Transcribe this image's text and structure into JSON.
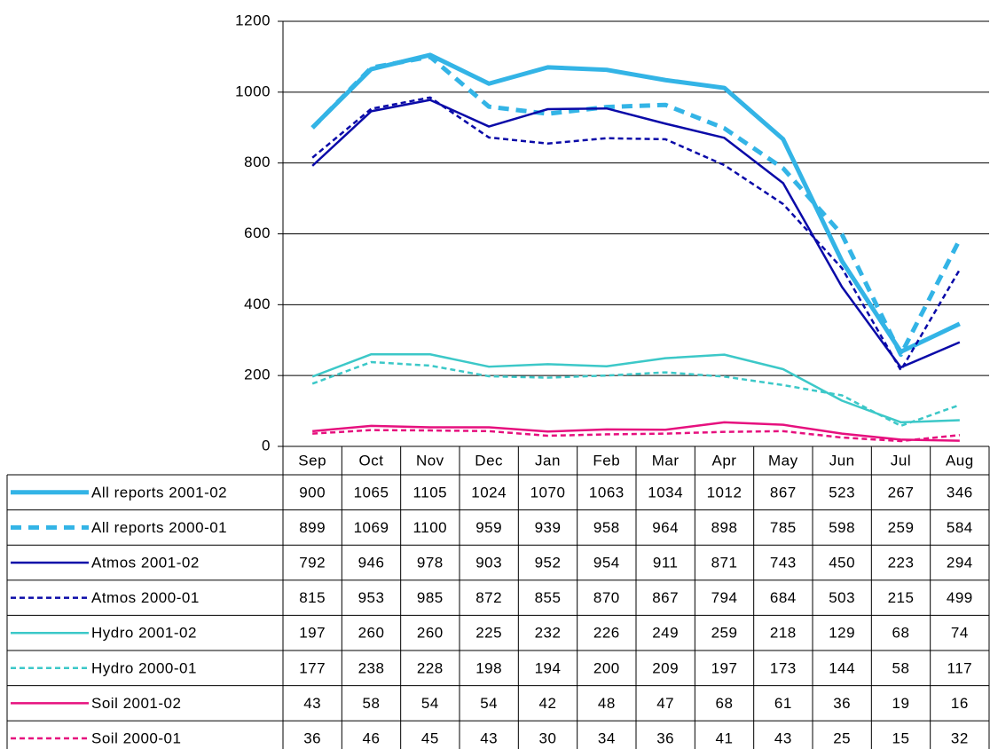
{
  "chart_data": {
    "type": "line",
    "categories": [
      "Sep",
      "Oct",
      "Nov",
      "Dec",
      "Jan",
      "Feb",
      "Mar",
      "Apr",
      "May",
      "Jun",
      "Jul",
      "Aug"
    ],
    "ylim": [
      0,
      1200
    ],
    "yticks": [
      0,
      200,
      400,
      600,
      800,
      1000,
      1200
    ],
    "grid": true,
    "data_table": true,
    "series": [
      {
        "name": "All reports 2001-02",
        "color": "#33b4e6",
        "dashed": false,
        "width": 5,
        "values": [
          900,
          1065,
          1105,
          1024,
          1070,
          1063,
          1034,
          1012,
          867,
          523,
          267,
          346
        ]
      },
      {
        "name": "All reports 2000-01",
        "color": "#33b4e6",
        "dashed": true,
        "width": 5,
        "values": [
          899,
          1069,
          1100,
          959,
          939,
          958,
          964,
          898,
          785,
          598,
          259,
          584
        ]
      },
      {
        "name": "Atmos 2001-02",
        "color": "#0a0aa8",
        "dashed": false,
        "width": 2.5,
        "values": [
          792,
          946,
          978,
          903,
          952,
          954,
          911,
          871,
          743,
          450,
          223,
          294
        ]
      },
      {
        "name": "Atmos 2000-01",
        "color": "#0a0aa8",
        "dashed": true,
        "width": 2.5,
        "values": [
          815,
          953,
          985,
          872,
          855,
          870,
          867,
          794,
          684,
          503,
          215,
          499
        ]
      },
      {
        "name": "Hydro 2001-02",
        "color": "#3cc8c8",
        "dashed": false,
        "width": 2.5,
        "values": [
          197,
          260,
          260,
          225,
          232,
          226,
          249,
          259,
          218,
          129,
          68,
          74
        ]
      },
      {
        "name": "Hydro 2000-01",
        "color": "#3cc8c8",
        "dashed": true,
        "width": 2.5,
        "values": [
          177,
          238,
          228,
          198,
          194,
          200,
          209,
          197,
          173,
          144,
          58,
          117
        ]
      },
      {
        "name": "Soil 2001-02",
        "color": "#e6107e",
        "dashed": false,
        "width": 2.5,
        "values": [
          43,
          58,
          54,
          54,
          42,
          48,
          47,
          68,
          61,
          36,
          19,
          16
        ]
      },
      {
        "name": "Soil 2000-01",
        "color": "#e6107e",
        "dashed": true,
        "width": 2.5,
        "values": [
          36,
          46,
          45,
          43,
          30,
          34,
          36,
          41,
          43,
          25,
          15,
          32
        ]
      }
    ]
  }
}
